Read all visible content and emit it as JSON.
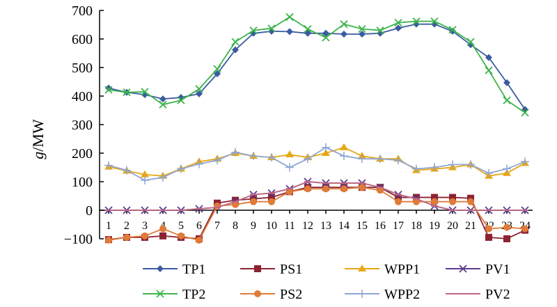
{
  "chart_data": {
    "type": "line",
    "ylabel_italic": "g",
    "ylabel_rest": "/MW",
    "ylim": [
      -100,
      700
    ],
    "yticks": [
      700,
      600,
      500,
      400,
      300,
      200,
      100,
      0,
      -100
    ],
    "ytick_labels": [
      "700",
      "600",
      "500",
      "400",
      "300",
      "200",
      "100",
      "0",
      "−100"
    ],
    "x": [
      1,
      2,
      3,
      4,
      5,
      6,
      7,
      8,
      9,
      10,
      11,
      12,
      13,
      14,
      15,
      16,
      17,
      18,
      19,
      20,
      21,
      22,
      23,
      24
    ],
    "x_labels": [
      "1",
      "2",
      "3",
      "4",
      "5",
      "6",
      "7",
      "8",
      "9",
      "10",
      "11",
      "12",
      "13",
      "14",
      "15",
      "16",
      "17",
      "18",
      "19",
      "20",
      "21",
      "22",
      "23",
      "24"
    ],
    "grid": false,
    "legend_position": "bottom",
    "series": [
      {
        "name": "TP1",
        "color": "#3B5BA0",
        "marker": "diamond",
        "values": [
          428,
          413,
          405,
          390,
          395,
          408,
          478,
          562,
          620,
          627,
          626,
          620,
          620,
          617,
          617,
          620,
          638,
          652,
          652,
          627,
          580,
          535,
          447,
          353
        ]
      },
      {
        "name": "PS1",
        "color": "#8B2332",
        "marker": "square",
        "values": [
          -103,
          -95,
          -95,
          -90,
          -95,
          -100,
          25,
          35,
          40,
          45,
          65,
          80,
          80,
          80,
          80,
          80,
          45,
          45,
          45,
          45,
          42,
          -95,
          -100,
          -70
        ]
      },
      {
        "name": "WPP1",
        "color": "#E6A817",
        "marker": "triangle",
        "values": [
          152,
          138,
          125,
          120,
          145,
          170,
          180,
          200,
          190,
          185,
          195,
          185,
          200,
          220,
          190,
          180,
          180,
          140,
          145,
          150,
          160,
          120,
          130,
          165
        ]
      },
      {
        "name": "PV1",
        "color": "#5C3D8F",
        "marker": "x",
        "values": [
          0,
          0,
          0,
          0,
          0,
          5,
          10,
          30,
          55,
          60,
          75,
          100,
          95,
          95,
          95,
          80,
          55,
          40,
          15,
          0,
          0,
          0,
          0,
          0
        ]
      },
      {
        "name": "TP2",
        "color": "#3CB44B",
        "marker": "x",
        "values": [
          422,
          413,
          415,
          370,
          385,
          425,
          495,
          590,
          630,
          637,
          677,
          635,
          605,
          652,
          635,
          630,
          657,
          662,
          662,
          632,
          590,
          490,
          385,
          342
        ]
      },
      {
        "name": "PS2",
        "color": "#E07B39",
        "marker": "circle",
        "values": [
          -105,
          -95,
          -90,
          -65,
          -90,
          -105,
          15,
          20,
          30,
          30,
          65,
          75,
          75,
          75,
          80,
          70,
          30,
          30,
          30,
          30,
          30,
          -65,
          -60,
          -65
        ]
      },
      {
        "name": "WPP2",
        "color": "#8FA6D4",
        "marker": "plus",
        "values": [
          157,
          140,
          105,
          115,
          145,
          162,
          175,
          203,
          190,
          185,
          150,
          180,
          220,
          190,
          180,
          180,
          175,
          145,
          150,
          160,
          160,
          130,
          145,
          170
        ]
      },
      {
        "name": "PV2",
        "color": "#C06880",
        "marker": "dash",
        "values": [
          0,
          0,
          0,
          0,
          0,
          5,
          10,
          30,
          55,
          60,
          75,
          100,
          95,
          95,
          95,
          80,
          55,
          40,
          15,
          0,
          0,
          0,
          0,
          0
        ]
      }
    ],
    "legend_rows": [
      [
        "TP1",
        "PS1",
        "WPP1",
        "PV1"
      ],
      [
        "TP2",
        "PS2",
        "WPP2",
        "PV2"
      ]
    ]
  }
}
